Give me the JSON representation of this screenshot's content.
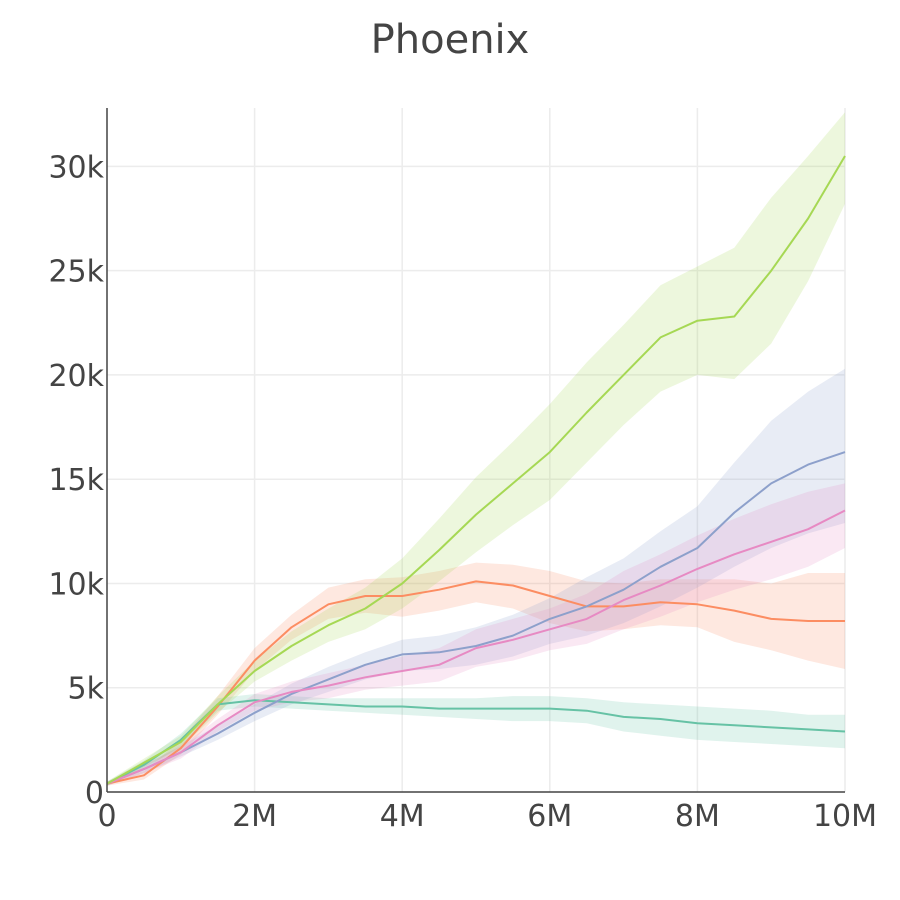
{
  "chart_data": {
    "type": "line",
    "title": "Phoenix",
    "xlabel": "",
    "ylabel": "",
    "xlim": [
      0,
      10000000
    ],
    "ylim": [
      0,
      32800
    ],
    "grid": true,
    "legend": "none",
    "x_ticks": [
      {
        "value": 0,
        "label": "0"
      },
      {
        "value": 2000000,
        "label": "2M"
      },
      {
        "value": 4000000,
        "label": "4M"
      },
      {
        "value": 6000000,
        "label": "6M"
      },
      {
        "value": 8000000,
        "label": "8M"
      },
      {
        "value": 10000000,
        "label": "10M"
      }
    ],
    "y_ticks": [
      {
        "value": 0,
        "label": "0"
      },
      {
        "value": 5000,
        "label": "5k"
      },
      {
        "value": 10000,
        "label": "10k"
      },
      {
        "value": 15000,
        "label": "15k"
      },
      {
        "value": 20000,
        "label": "20k"
      },
      {
        "value": 25000,
        "label": "25k"
      },
      {
        "value": 30000,
        "label": "30k"
      }
    ],
    "x": [
      0,
      500000,
      1000000,
      1500000,
      2000000,
      2500000,
      3000000,
      3500000,
      4000000,
      4500000,
      5000000,
      5500000,
      6000000,
      6500000,
      7000000,
      7500000,
      8000000,
      8500000,
      9000000,
      9500000,
      10000000
    ],
    "series": [
      {
        "color": "#fc8d62",
        "values": [
          400,
          800,
          2100,
          4100,
          6300,
          7900,
          9000,
          9400,
          9400,
          9700,
          10100,
          9900,
          9400,
          8900,
          8900,
          9100,
          9000,
          8700,
          8300,
          8200,
          8200
        ],
        "lower": [
          300,
          600,
          1800,
          3700,
          5800,
          7300,
          8300,
          8600,
          8400,
          8700,
          9100,
          8800,
          8100,
          7700,
          7800,
          8000,
          7900,
          7200,
          6800,
          6300,
          5900
        ],
        "upper": [
          500,
          1000,
          2500,
          4600,
          6900,
          8500,
          9800,
          10200,
          10300,
          10600,
          11000,
          10900,
          10600,
          10100,
          10000,
          10200,
          10200,
          10200,
          10000,
          10500,
          10500
        ]
      },
      {
        "color": "#66c2a5",
        "values": [
          400,
          1300,
          2500,
          4200,
          4400,
          4300,
          4200,
          4100,
          4100,
          4000,
          4000,
          4000,
          4000,
          3900,
          3600,
          3500,
          3300,
          3200,
          3100,
          3000,
          2900
        ],
        "lower": [
          300,
          1100,
          2200,
          3900,
          4100,
          4000,
          3900,
          3800,
          3700,
          3600,
          3500,
          3400,
          3400,
          3300,
          2900,
          2700,
          2500,
          2400,
          2300,
          2200,
          2100
        ],
        "upper": [
          500,
          1500,
          2800,
          4500,
          4700,
          4600,
          4500,
          4500,
          4500,
          4500,
          4500,
          4600,
          4600,
          4500,
          4300,
          4200,
          4100,
          4000,
          3900,
          3700,
          3700
        ]
      },
      {
        "color": "#8da0cb",
        "values": [
          400,
          1100,
          1900,
          2800,
          3800,
          4700,
          5400,
          6100,
          6600,
          6700,
          7000,
          7500,
          8300,
          8900,
          9700,
          10800,
          11700,
          13400,
          14800,
          15700,
          16300
        ],
        "lower": [
          300,
          900,
          1700,
          2500,
          3400,
          4200,
          4800,
          5400,
          5800,
          5900,
          6100,
          6500,
          7100,
          7500,
          8100,
          8900,
          9800,
          10800,
          11700,
          12400,
          12900
        ],
        "upper": [
          500,
          1300,
          2200,
          3200,
          4200,
          5200,
          6000,
          6700,
          7300,
          7500,
          7900,
          8500,
          9300,
          10300,
          11200,
          12500,
          13700,
          15800,
          17800,
          19200,
          20300
        ]
      },
      {
        "color": "#e78ac3",
        "values": [
          400,
          1100,
          1900,
          3200,
          4300,
          4800,
          5100,
          5500,
          5800,
          6100,
          6900,
          7300,
          7800,
          8300,
          9200,
          9900,
          10700,
          11400,
          12000,
          12600,
          13500
        ],
        "lower": [
          300,
          900,
          1600,
          2900,
          3900,
          4300,
          4500,
          4900,
          5100,
          5300,
          6000,
          6300,
          6800,
          7100,
          7800,
          8400,
          9100,
          9700,
          10200,
          10800,
          11700
        ],
        "upper": [
          500,
          1300,
          2200,
          3500,
          4700,
          5300,
          5700,
          6100,
          6500,
          6900,
          7800,
          8300,
          8800,
          9500,
          10600,
          11400,
          12300,
          13100,
          13800,
          14400,
          14800
        ]
      },
      {
        "color": "#a6d854",
        "values": [
          400,
          1400,
          2400,
          4200,
          5800,
          7000,
          8000,
          8800,
          10000,
          11600,
          13300,
          14800,
          16300,
          18200,
          20000,
          21800,
          22600,
          22800,
          25000,
          27500,
          30500
        ],
        "lower": [
          300,
          1200,
          2100,
          3800,
          5300,
          6300,
          7200,
          7800,
          8800,
          10100,
          11500,
          12800,
          14000,
          15800,
          17600,
          19200,
          20000,
          19800,
          21500,
          24500,
          28200
        ],
        "upper": [
          500,
          1600,
          2700,
          4600,
          6300,
          7700,
          8800,
          9800,
          11200,
          13100,
          15100,
          16800,
          18600,
          20600,
          22400,
          24300,
          25200,
          26100,
          28500,
          30500,
          32600
        ]
      }
    ]
  }
}
